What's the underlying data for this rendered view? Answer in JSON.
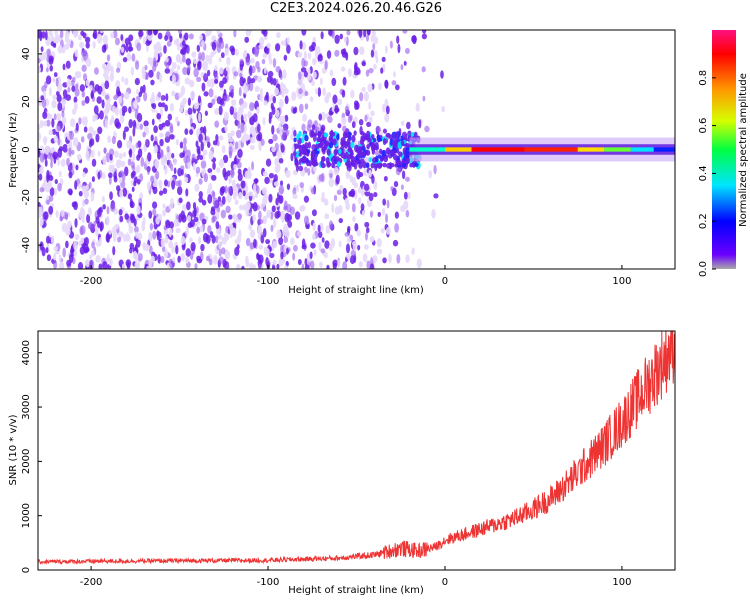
{
  "figure": {
    "title": "C2E3.2024.026.20.46.G26"
  },
  "colors": {
    "frame": "#000000",
    "snr_line": "#ee3333",
    "spectro_low": "#e6d8fa",
    "spectro_mid": "#6a1fe6",
    "spectro_high": "#ff0000",
    "colorbar": [
      "#a8a8a8",
      "#6a00ff",
      "#0000ff",
      "#00e5ff",
      "#00ff40",
      "#d6ff00",
      "#ff9900",
      "#ff0000",
      "#ff1080"
    ]
  },
  "chart_data": [
    {
      "type": "heatmap",
      "title": "",
      "xlabel": "Height of straight line (km)",
      "ylabel": "Frequency (Hz)",
      "xlim": [
        -230,
        130
      ],
      "ylim": [
        -50,
        50
      ],
      "xticks": [
        -200,
        -100,
        0,
        100
      ],
      "yticks": [
        -40,
        -20,
        0,
        20,
        40
      ],
      "colorbar": {
        "label": "Normalized spectral amplitude",
        "range": [
          0,
          1
        ],
        "ticks": [
          0.0,
          0.2,
          0.4,
          0.6,
          0.8
        ]
      },
      "features": [
        {
          "description": "scattered noise",
          "x_range": [
            -230,
            -20
          ],
          "freq_range": [
            -50,
            50
          ],
          "amplitude": 0.15
        },
        {
          "description": "carrier line",
          "x_range": [
            -20,
            130
          ],
          "freq": 0,
          "amplitude": 1.0
        }
      ]
    },
    {
      "type": "line",
      "title": "",
      "xlabel": "Height of straight line (km)",
      "ylabel": "SNR (10 * v/v)",
      "xlim": [
        -230,
        130
      ],
      "ylim": [
        0,
        4400
      ],
      "xticks": [
        -200,
        -100,
        0,
        100
      ],
      "yticks": [
        0,
        1000,
        2000,
        3000,
        4000
      ],
      "series": [
        {
          "x": [
            -230,
            -200,
            -150,
            -100,
            -60,
            -40,
            -25,
            -15,
            -5,
            0,
            10,
            20,
            30,
            40,
            50,
            60,
            70,
            80,
            90,
            100,
            110,
            120,
            130
          ],
          "y": [
            150,
            160,
            170,
            180,
            220,
            280,
            400,
            350,
            430,
            550,
            650,
            750,
            850,
            960,
            1120,
            1320,
            1620,
            1960,
            2310,
            2720,
            3200,
            3680,
            4200
          ]
        }
      ]
    }
  ]
}
